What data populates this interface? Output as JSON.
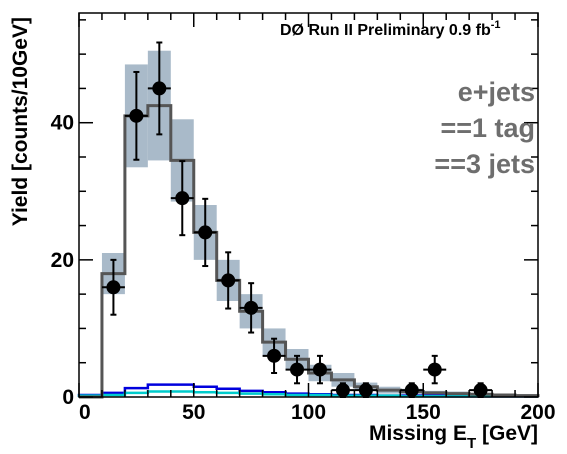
{
  "chart_data": {
    "type": "histogram",
    "experiment_label": "DØ Run II Preliminary 0.9 fb",
    "experiment_label_sup": "-1",
    "selection_labels": [
      "e+jets",
      "==1 tag",
      "==3 jets"
    ],
    "xlabel": "Missing E",
    "xlabel_sub": "T",
    "xlabel_unit": " [GeV]",
    "ylabel": "Yield [counts/10GeV]",
    "xlim": [
      0,
      200
    ],
    "ylim": [
      0,
      56
    ],
    "x_ticks": [
      "0",
      "50",
      "100",
      "150",
      "200"
    ],
    "y_ticks": [
      "0",
      "20",
      "40"
    ],
    "bin_edges": [
      0,
      10,
      20,
      30,
      40,
      50,
      60,
      70,
      80,
      90,
      100,
      110,
      120,
      130,
      140,
      150,
      160,
      170,
      180,
      190,
      200
    ],
    "total_prediction": [
      0,
      18,
      41,
      42.5,
      34.5,
      24,
      17,
      12.5,
      8,
      5.5,
      3.5,
      2.5,
      1.5,
      1,
      0.8,
      0.6,
      0.5,
      0.4,
      0.3,
      0.2
    ],
    "prediction_uncertainty": [
      0,
      3,
      7.5,
      8,
      6,
      4,
      3,
      2.5,
      2,
      1.5,
      1.2,
      1,
      0.6,
      0.5,
      0.4,
      0.3,
      0.3,
      0.2,
      0.2,
      0.2
    ],
    "data_points": [
      {
        "x": 15,
        "y": 16,
        "yerr": 4
      },
      {
        "x": 25,
        "y": 41,
        "yerr": 6.4
      },
      {
        "x": 35,
        "y": 45,
        "yerr": 6.7
      },
      {
        "x": 45,
        "y": 29,
        "yerr": 5.4
      },
      {
        "x": 55,
        "y": 24,
        "yerr": 4.9
      },
      {
        "x": 65,
        "y": 17,
        "yerr": 4.1
      },
      {
        "x": 75,
        "y": 13,
        "yerr": 3.6
      },
      {
        "x": 85,
        "y": 6,
        "yerr": 2.5
      },
      {
        "x": 95,
        "y": 4,
        "yerr": 2
      },
      {
        "x": 105,
        "y": 4,
        "yerr": 2
      },
      {
        "x": 115,
        "y": 1,
        "yerr": 1
      },
      {
        "x": 125,
        "y": 1,
        "yerr": 1
      },
      {
        "x": 145,
        "y": 1,
        "yerr": 1
      },
      {
        "x": 155,
        "y": 4,
        "yerr": 2
      },
      {
        "x": 175,
        "y": 1,
        "yerr": 1
      }
    ],
    "background_components": [
      {
        "color": "#0000dd",
        "values": [
          0.3,
          0.6,
          1.3,
          1.8,
          1.8,
          1.5,
          1.2,
          0.9,
          0.7,
          0.5,
          0.4,
          0.3,
          0.3,
          0.2,
          0.2,
          0.2,
          0.1,
          0.1,
          0.1,
          0.1
        ]
      },
      {
        "color": "#00cccc",
        "values": [
          0.2,
          0.3,
          0.6,
          0.8,
          0.8,
          0.7,
          0.6,
          0.5,
          0.4,
          0.3,
          0.3,
          0.2,
          0.2,
          0.2,
          0.1,
          0.1,
          0.1,
          0.1,
          0.1,
          0.1
        ]
      }
    ],
    "colors": {
      "uncertainty_band": "#a9bac9",
      "total_line": "#555555",
      "data": "#000000",
      "selection_text": "#6e6e6e"
    }
  }
}
